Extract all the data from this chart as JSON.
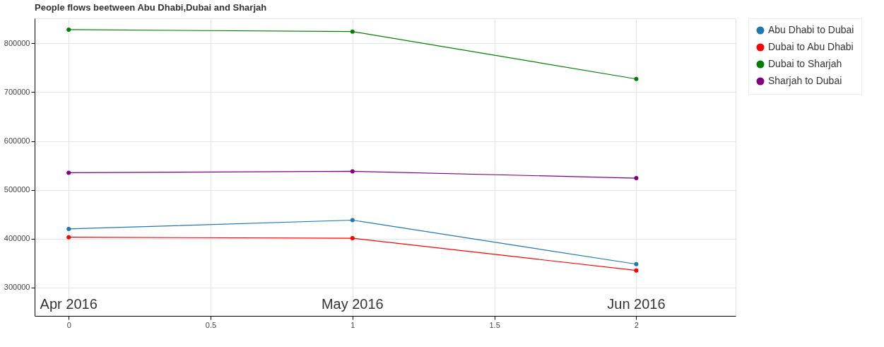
{
  "chart_data": {
    "type": "line",
    "title": "People flows beetween Abu Dhabi,Dubai and Sharjah",
    "x": [
      0,
      1,
      2
    ],
    "xlim": [
      -0.12,
      2.35
    ],
    "xticks": [
      0,
      0.5,
      1,
      1.5,
      2
    ],
    "ylim": [
      242000,
      851000
    ],
    "yticks": [
      300000,
      400000,
      500000,
      600000,
      700000,
      800000
    ],
    "grid": true,
    "legend": "top right",
    "marker": "circle",
    "line_style": "solid",
    "series": [
      {
        "name": "Abu Dhabi to Dubai",
        "color": "#1f77b4",
        "values": [
          420000,
          438000,
          348000
        ]
      },
      {
        "name": "Dubai to Abu Dhabi",
        "color": "#ff0000",
        "values": [
          403000,
          401000,
          335000
        ]
      },
      {
        "name": "Dubai to Sharjah",
        "color": "#008000",
        "values": [
          828000,
          824000,
          727000
        ]
      },
      {
        "name": "Sharjah to Dubai",
        "color": "#800080",
        "values": [
          535000,
          538000,
          524000
        ]
      }
    ],
    "annotations": [
      "Apr 2016",
      "May 2016",
      "Jun 2016"
    ]
  }
}
